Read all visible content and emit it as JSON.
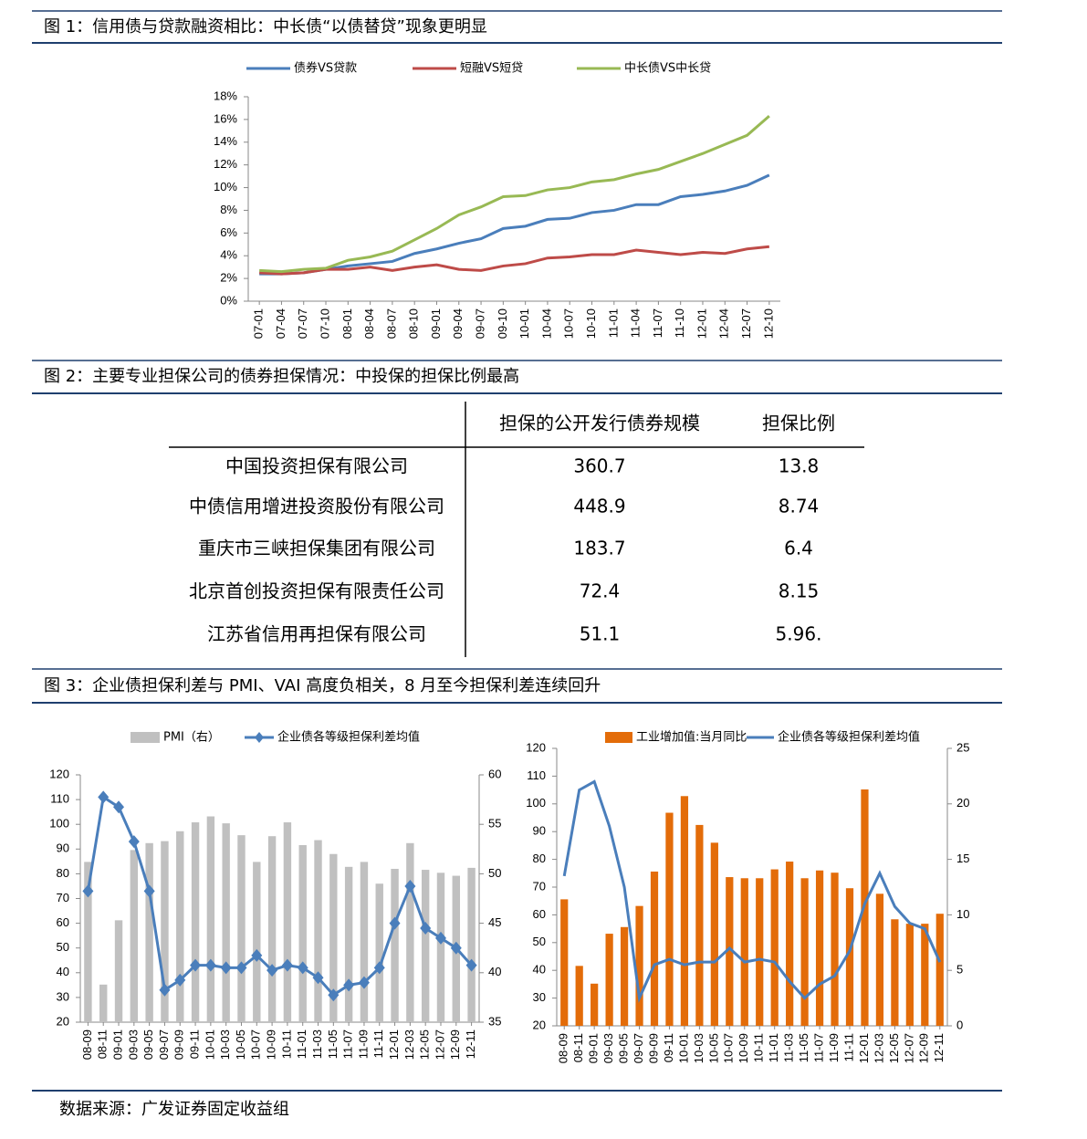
{
  "captions": [
    "图 1：信用债与贷款融资相比：中长债“以债替贷”现象更明显",
    "图 2：主要专业担保公司的债券担保情况：中投保的担保比例最高",
    "图 3：企业债担保利差与 PMI、VAI 高度负相关，8 月至今担保利差连续回升"
  ],
  "chart_data": [
    {
      "type": "line",
      "categories": [
        "07-01",
        "07-04",
        "07-07",
        "07-10",
        "08-01",
        "08-04",
        "08-07",
        "08-10",
        "09-01",
        "09-04",
        "09-07",
        "09-10",
        "10-01",
        "10-04",
        "10-07",
        "10-10",
        "11-01",
        "11-04",
        "11-07",
        "11-10",
        "12-01",
        "12-04",
        "12-07",
        "12-10"
      ],
      "series": [
        {
          "name": "债券VS贷款",
          "color": "#4a7ebb",
          "kind": "line",
          "values": [
            2.4,
            2.4,
            2.5,
            2.8,
            3.1,
            3.3,
            3.5,
            4.2,
            4.6,
            5.1,
            5.5,
            6.4,
            6.6,
            7.2,
            7.3,
            7.8,
            8.0,
            8.5,
            8.5,
            9.2,
            9.4,
            9.7,
            10.2,
            11.1
          ]
        },
        {
          "name": "短融VS短贷",
          "color": "#be4b48",
          "kind": "line",
          "values": [
            2.5,
            2.4,
            2.5,
            2.8,
            2.8,
            3.0,
            2.7,
            3.0,
            3.2,
            2.8,
            2.7,
            3.1,
            3.3,
            3.8,
            3.9,
            4.1,
            4.1,
            4.5,
            4.3,
            4.1,
            4.3,
            4.2,
            4.6,
            4.8
          ]
        },
        {
          "name": "中长债VS中长贷",
          "color": "#98b954",
          "kind": "line",
          "values": [
            2.7,
            2.6,
            2.8,
            2.9,
            3.6,
            3.9,
            4.4,
            5.4,
            6.4,
            7.6,
            8.3,
            9.2,
            9.3,
            9.8,
            10.0,
            10.5,
            10.7,
            11.2,
            11.6,
            12.3,
            13.0,
            13.8,
            14.6,
            16.3
          ]
        }
      ],
      "ylim": [
        0,
        18
      ],
      "yticks": [
        {
          "value": 0,
          "label": "0%"
        },
        {
          "value": 2,
          "label": "2%"
        },
        {
          "value": 4,
          "label": "4%"
        },
        {
          "value": 6,
          "label": "6%"
        },
        {
          "value": 8,
          "label": "8%"
        },
        {
          "value": 10,
          "label": "10%"
        },
        {
          "value": 12,
          "label": "12%"
        },
        {
          "value": 14,
          "label": "14%"
        },
        {
          "value": 16,
          "label": "16%"
        },
        {
          "value": 18,
          "label": "18%"
        }
      ],
      "grid": false
    },
    {
      "type": "combo",
      "categories": [
        "08-09",
        "08-11",
        "09-01",
        "09-03",
        "09-05",
        "09-07",
        "09-09",
        "09-11",
        "10-01",
        "10-03",
        "10-05",
        "10-07",
        "10-09",
        "10-11",
        "11-01",
        "11-03",
        "11-05",
        "11-07",
        "11-09",
        "11-11",
        "12-01",
        "12-03",
        "12-05",
        "12-07",
        "12-09",
        "12-11"
      ],
      "series": [
        {
          "name": "PMI（右）",
          "color": "#c0c0c0",
          "kind": "bar",
          "axis": "y2",
          "values": [
            51.2,
            38.8,
            45.3,
            52.4,
            53.1,
            53.3,
            54.3,
            55.2,
            55.8,
            55.1,
            53.9,
            51.2,
            53.8,
            55.2,
            52.9,
            53.4,
            52.0,
            50.7,
            51.2,
            49.0,
            50.5,
            53.1,
            50.4,
            50.1,
            49.8,
            50.6
          ]
        },
        {
          "name": "企业债各等级担保利差均值",
          "color": "#4a7ebb",
          "kind": "line",
          "marker": "diamond",
          "values": [
            73,
            111,
            107,
            93,
            73,
            33,
            37,
            43,
            43,
            42,
            42,
            47,
            41,
            43,
            42,
            38,
            31,
            35,
            36,
            42,
            60,
            75,
            58,
            54,
            50,
            43
          ]
        }
      ],
      "ylim": [
        20,
        120
      ],
      "yticks": [
        20,
        30,
        40,
        50,
        60,
        70,
        80,
        90,
        100,
        110,
        120
      ],
      "y2lim": [
        35,
        60
      ],
      "y2ticks": [
        35,
        40,
        45,
        50,
        55,
        60
      ],
      "grid": false
    },
    {
      "type": "combo",
      "categories": [
        "08-09",
        "08-11",
        "09-01",
        "09-03",
        "09-05",
        "09-07",
        "09-09",
        "09-11",
        "10-01",
        "10-03",
        "10-05",
        "10-07",
        "10-09",
        "10-11",
        "11-01",
        "11-03",
        "11-05",
        "11-07",
        "11-09",
        "11-11",
        "12-01",
        "12-03",
        "12-05",
        "12-07",
        "12-09",
        "12-11"
      ],
      "series": [
        {
          "name": "工业增加值:当月同比",
          "color": "#e36c09",
          "kind": "bar",
          "axis": "y2",
          "values": [
            11.4,
            5.4,
            3.8,
            8.3,
            8.9,
            10.8,
            13.9,
            19.2,
            20.7,
            18.1,
            16.5,
            13.4,
            13.3,
            13.3,
            14.1,
            14.8,
            13.3,
            14.0,
            13.8,
            12.4,
            21.3,
            11.9,
            9.6,
            9.2,
            9.2,
            10.1
          ]
        },
        {
          "name": "企业债各等级担保利差均值",
          "color": "#4a7ebb",
          "kind": "line",
          "values": [
            74,
            105,
            108,
            92,
            70,
            30,
            42,
            44,
            42,
            43,
            43,
            48,
            43,
            44,
            43,
            36,
            30,
            35,
            38,
            47,
            64,
            75,
            63,
            57,
            55,
            43
          ]
        }
      ],
      "ylim": [
        20,
        120
      ],
      "yticks": [
        20,
        30,
        40,
        50,
        60,
        70,
        80,
        90,
        100,
        110,
        120
      ],
      "y2lim": [
        0,
        25
      ],
      "y2ticks": [
        0,
        5,
        10,
        15,
        20,
        25
      ],
      "grid": false
    }
  ],
  "table": {
    "header": [
      "担保的公开发行债券规模",
      "担保比例"
    ],
    "rows": [
      [
        "中国投资担保有限公司",
        "360.7",
        "13.8"
      ],
      [
        "中债信用增进投资股份有限公司",
        "448.9",
        "8.74"
      ],
      [
        "重庆市三峡担保集团有限公司",
        "183.7",
        "6.4"
      ],
      [
        "北京首创投资担保有限责任公司",
        "72.4",
        "8.15"
      ],
      [
        "江苏省信用再担保有限公司",
        "51.1",
        "5.96."
      ]
    ]
  },
  "source": "数据来源：广发证券固定收益组"
}
